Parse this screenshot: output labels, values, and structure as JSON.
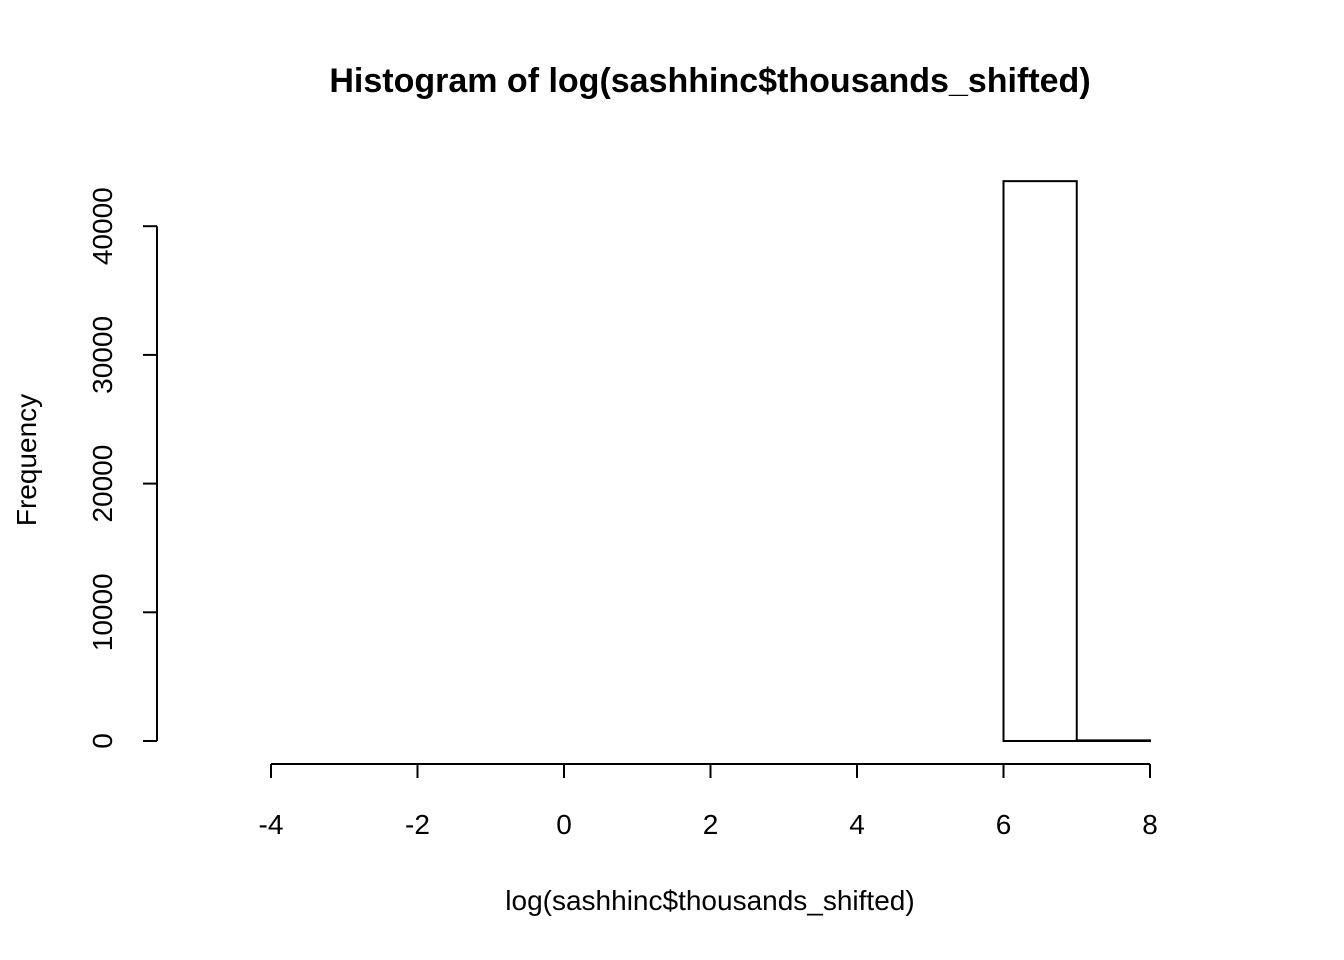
{
  "chart_data": {
    "type": "bar",
    "title": "Histogram of log(sashhinc$thousands_shifted)",
    "xlabel": "log(sashhinc$thousands_shifted)",
    "ylabel": "Frequency",
    "xlim": [
      -5,
      9
    ],
    "ylim": [
      0,
      45000
    ],
    "x_ticks": [
      -4,
      -2,
      0,
      2,
      4,
      6,
      8
    ],
    "y_ticks": [
      0,
      10000,
      20000,
      30000,
      40000
    ],
    "bins": [
      {
        "x0": -5,
        "x1": -4,
        "count": 0
      },
      {
        "x0": -4,
        "x1": -3,
        "count": 0
      },
      {
        "x0": -3,
        "x1": -2,
        "count": 0
      },
      {
        "x0": -2,
        "x1": -1,
        "count": 0
      },
      {
        "x0": -1,
        "x1": 0,
        "count": 0
      },
      {
        "x0": 0,
        "x1": 1,
        "count": 0
      },
      {
        "x0": 1,
        "x1": 2,
        "count": 0
      },
      {
        "x0": 2,
        "x1": 3,
        "count": 0
      },
      {
        "x0": 3,
        "x1": 4,
        "count": 0
      },
      {
        "x0": 4,
        "x1": 5,
        "count": 0
      },
      {
        "x0": 5,
        "x1": 6,
        "count": 0
      },
      {
        "x0": 6,
        "x1": 7,
        "count": 43500
      },
      {
        "x0": 7,
        "x1": 8,
        "count": 50
      },
      {
        "x0": 8,
        "x1": 9,
        "count": 0
      }
    ],
    "grid": false,
    "legend": "none"
  }
}
